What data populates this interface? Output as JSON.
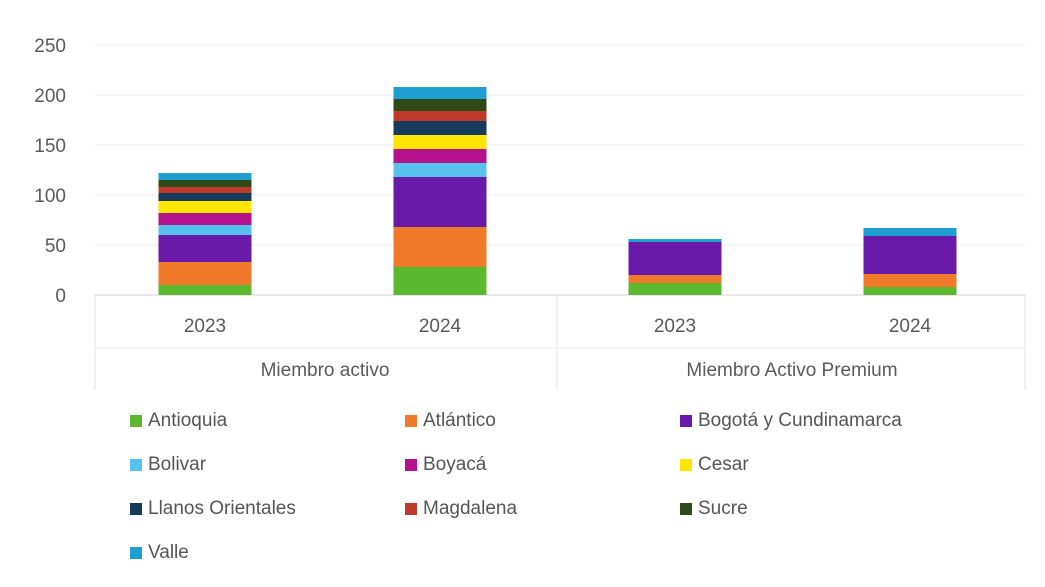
{
  "chart_data": {
    "type": "bar",
    "stacked": true,
    "ylim": [
      0,
      250
    ],
    "yticks": [
      0,
      50,
      100,
      150,
      200,
      250
    ],
    "grid": true,
    "legend_position": "bottom",
    "groups": [
      {
        "label": "Miembro activo",
        "categories": [
          "2023",
          "2024"
        ]
      },
      {
        "label": "Miembro Activo Premium",
        "categories": [
          "2023",
          "2024"
        ]
      }
    ],
    "categories": [
      "2023",
      "2024",
      "2023",
      "2024"
    ],
    "series": [
      {
        "name": "Antioquia",
        "color": "#5cb82e",
        "values": [
          10,
          28,
          12,
          8
        ]
      },
      {
        "name": "Atlántico",
        "color": "#f07a2a",
        "values": [
          23,
          40,
          8,
          13
        ]
      },
      {
        "name": "Bogotá y Cundinamarca",
        "color": "#6a1aa8",
        "values": [
          27,
          50,
          33,
          38
        ]
      },
      {
        "name": "Bolivar",
        "color": "#56c1ec",
        "values": [
          10,
          14,
          0,
          0
        ]
      },
      {
        "name": "Boyacá",
        "color": "#b3128c",
        "values": [
          12,
          14,
          0,
          0
        ]
      },
      {
        "name": "Cesar",
        "color": "#ffe600",
        "values": [
          12,
          14,
          0,
          0
        ]
      },
      {
        "name": "Llanos Orientales",
        "color": "#163a5a",
        "values": [
          8,
          14,
          0,
          0
        ]
      },
      {
        "name": "Magdalena",
        "color": "#c0392b",
        "values": [
          6,
          10,
          0,
          0
        ]
      },
      {
        "name": "Sucre",
        "color": "#2e4a17",
        "values": [
          7,
          12,
          0,
          0
        ]
      },
      {
        "name": "Valle",
        "color": "#1f9ed1",
        "values": [
          7,
          12,
          3,
          8
        ]
      }
    ]
  }
}
